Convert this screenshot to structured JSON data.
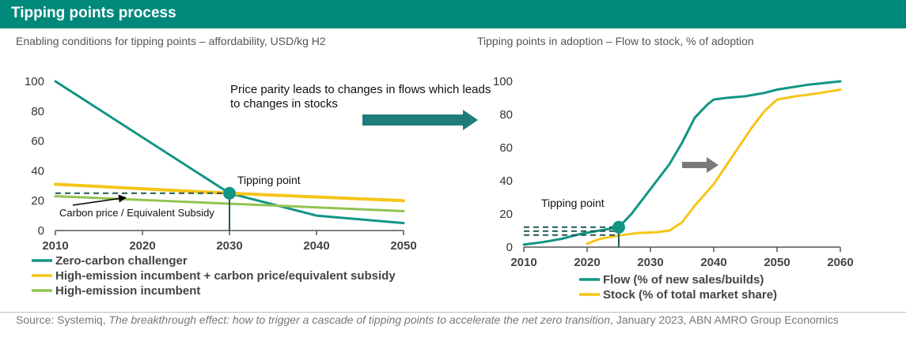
{
  "header": {
    "title": "Tipping points process"
  },
  "source": {
    "prefix": "Source: Systemiq, ",
    "italic": "The breakthrough effect: how to trigger a cascade of tipping points to accelerate the net zero transition",
    "suffix": ", January 2023, ABN AMRO Group Economics"
  },
  "middle_note": "Price parity leads to changes in flows which leads to changes in stocks",
  "colors": {
    "teal": "#139484",
    "yellow": "#f5c518",
    "light_green": "#92c353",
    "header": "#00897b"
  },
  "chart_data": [
    {
      "type": "line",
      "title": "Enabling conditions for tipping points – affordability, USD/kg H2",
      "xlim": [
        2010,
        2050
      ],
      "ylim": [
        0,
        100
      ],
      "x_ticks": [
        "2010",
        "2020",
        "2030",
        "2040",
        "2050"
      ],
      "y_ticks": [
        "0",
        "20",
        "40",
        "60",
        "80",
        "100"
      ],
      "series": [
        {
          "name": "Zero-carbon challenger",
          "color": "#139484",
          "points": [
            [
              2010,
              100
            ],
            [
              2030,
              25
            ],
            [
              2040,
              10
            ],
            [
              2050,
              5
            ]
          ]
        },
        {
          "name": "High-emission incumbent + carbon price/equivalent subsidy",
          "color": "#f5c518",
          "points": [
            [
              2010,
              31
            ],
            [
              2030,
              25
            ],
            [
              2050,
              20
            ]
          ]
        },
        {
          "name": "High-emission incumbent",
          "color": "#92c353",
          "points": [
            [
              2010,
              23
            ],
            [
              2030,
              18
            ],
            [
              2050,
              13
            ]
          ]
        }
      ],
      "tipping_point": {
        "label": "Tipping point",
        "x": 2030,
        "y": 25
      },
      "annotation": {
        "label": "Carbon price / Equivalent Subsidy",
        "from": [
          2012,
          17
        ],
        "to": [
          2018,
          22
        ]
      },
      "legend": "bottom"
    },
    {
      "type": "line",
      "title": "Tipping points in adoption – Flow to stock, % of adoption",
      "xlim": [
        2010,
        2060
      ],
      "ylim": [
        0,
        100
      ],
      "x_ticks": [
        "2010",
        "2020",
        "2030",
        "2040",
        "2050",
        "2060"
      ],
      "y_ticks": [
        "0",
        "20",
        "40",
        "60",
        "80",
        "100"
      ],
      "series": [
        {
          "name": "Flow (% of new sales/builds)",
          "color": "#139484",
          "points": [
            [
              2010,
              1.5
            ],
            [
              2013,
              3
            ],
            [
              2016,
              5
            ],
            [
              2019,
              8
            ],
            [
              2022,
              10
            ],
            [
              2025,
              12
            ],
            [
              2027,
              20
            ],
            [
              2029,
              30
            ],
            [
              2031,
              40
            ],
            [
              2033,
              50
            ],
            [
              2035,
              63
            ],
            [
              2037,
              78
            ],
            [
              2039,
              86
            ],
            [
              2040,
              89
            ],
            [
              2042,
              90
            ],
            [
              2045,
              91
            ],
            [
              2048,
              93
            ],
            [
              2050,
              95
            ],
            [
              2055,
              98
            ],
            [
              2060,
              100
            ]
          ]
        },
        {
          "name": "Stock (% of total market share)",
          "color": "#f5c518",
          "points": [
            [
              2020,
              2
            ],
            [
              2022,
              5
            ],
            [
              2025,
              7
            ],
            [
              2028,
              8.5
            ],
            [
              2031,
              9
            ],
            [
              2033,
              10
            ],
            [
              2035,
              15
            ],
            [
              2037,
              25
            ],
            [
              2040,
              38
            ],
            [
              2043,
              55
            ],
            [
              2046,
              72
            ],
            [
              2048,
              82
            ],
            [
              2050,
              89
            ],
            [
              2053,
              91
            ],
            [
              2056,
              92.5
            ],
            [
              2060,
              95
            ]
          ]
        }
      ],
      "tipping_point": {
        "label": "Tipping point",
        "x": 2025,
        "y": 12
      },
      "legend": "bottom"
    }
  ]
}
